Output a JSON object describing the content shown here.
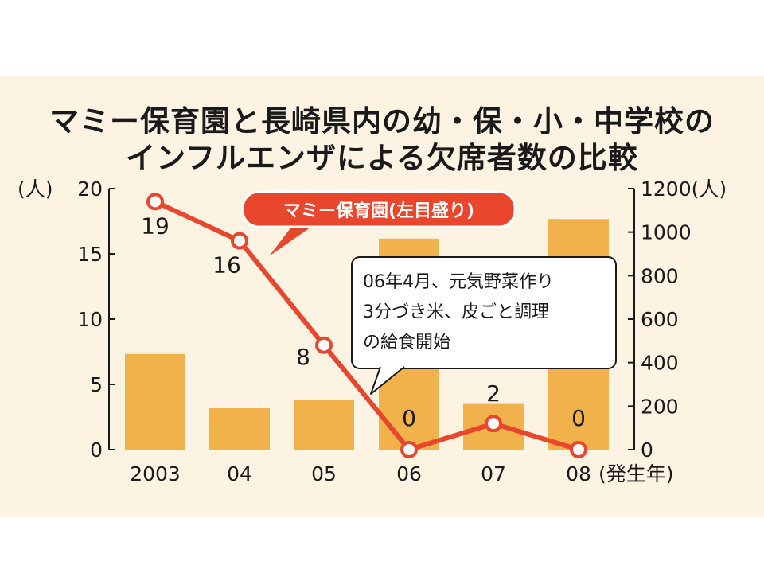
{
  "title": {
    "line1": "マミー保育園と長崎県内の幼・保・小・中学校の",
    "line2": "インフルエンザによる欠席者数の比較"
  },
  "chart_data": {
    "type": "bar",
    "categories": [
      "2003",
      "04",
      "05",
      "06",
      "07",
      "08"
    ],
    "x_unit": "(発生年)",
    "left_axis": {
      "unit": "(人)",
      "ylim": [
        0,
        20
      ],
      "ticks": [
        0,
        5,
        10,
        15,
        20
      ]
    },
    "right_axis": {
      "unit": "(人)",
      "ylim": [
        0,
        1200
      ],
      "ticks": [
        0,
        200,
        400,
        600,
        800,
        1000,
        1200
      ]
    },
    "series": [
      {
        "type": "bar",
        "axis": "right",
        "values": [
          440,
          190,
          230,
          970,
          210,
          1060
        ],
        "color": "#f2b24b"
      },
      {
        "type": "line",
        "name": "マミー保育園(左目盛り)",
        "axis": "left",
        "values": [
          19,
          16,
          8,
          0,
          2,
          0
        ],
        "labels": [
          "19",
          "16",
          "8",
          "0",
          "2",
          "0"
        ],
        "color": "#e8472e"
      }
    ],
    "annotation": [
      "06年4月、元気野菜作り",
      "3分づき米、皮ごと調理",
      "の給食開始"
    ],
    "grid": false
  }
}
